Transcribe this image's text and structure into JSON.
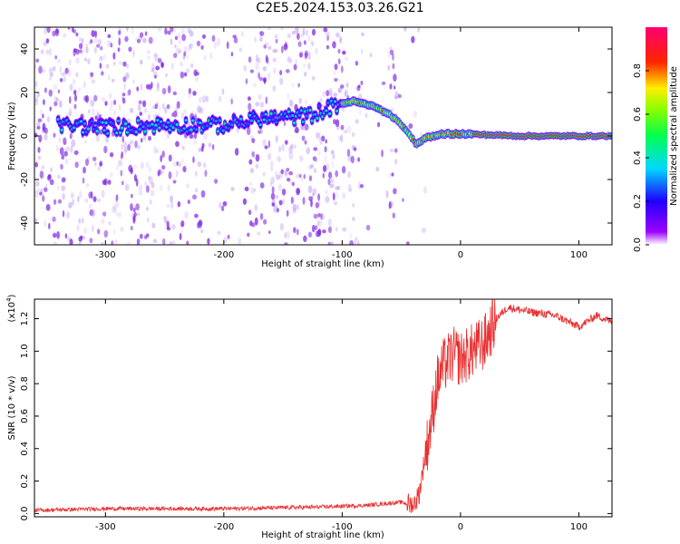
{
  "title": "C2E5.2024.153.03.26.G21",
  "colors": {
    "snr_line": "#e83030",
    "frame": "#000000"
  },
  "colorbar": {
    "label": "Normalized spectral amplitude",
    "ticks": [
      "0.0",
      "0.2",
      "0.4",
      "0.6",
      "0.8"
    ],
    "tick_values": [
      0.0,
      0.2,
      0.4,
      0.6,
      0.8
    ],
    "range": [
      0,
      1
    ],
    "colormap": "gist_rainbow_r (violet → blue → cyan → green → yellow → red → magenta)"
  },
  "chart_data": [
    {
      "type": "heatmap",
      "title": "C2E5.2024.153.03.26.G21",
      "xlabel": "Height of straight line (km)",
      "ylabel": "Frequency (Hz)",
      "xlim": [
        -360,
        128
      ],
      "ylim": [
        -50,
        50
      ],
      "xticks": [
        -300,
        -200,
        -100,
        0,
        100
      ],
      "yticks": [
        -40,
        -20,
        0,
        20,
        40
      ],
      "colorbar_label": "Normalized spectral amplitude",
      "description_of_signal": [
        {
          "x": -340,
          "y": 5
        },
        {
          "x": -300,
          "y": 4
        },
        {
          "x": -250,
          "y": 5
        },
        {
          "x": -200,
          "y": 5
        },
        {
          "x": -170,
          "y": 8
        },
        {
          "x": -130,
          "y": 9
        },
        {
          "x": -100,
          "y": 15
        },
        {
          "x": -90,
          "y": 16
        },
        {
          "x": -70,
          "y": 13
        },
        {
          "x": -55,
          "y": 8
        },
        {
          "x": -45,
          "y": 2
        },
        {
          "x": -37,
          "y": -4
        },
        {
          "x": -30,
          "y": -1
        },
        {
          "x": -15,
          "y": 1
        },
        {
          "x": 0,
          "y": 1
        },
        {
          "x": 50,
          "y": 0
        },
        {
          "x": 128,
          "y": 0
        }
      ]
    },
    {
      "type": "line",
      "title": "",
      "xlabel": "Height of straight line (km)",
      "ylabel": "SNR (10 * v/v)",
      "yunit_multiplier": "(x10",
      "yunit_exponent": "4",
      "xlim": [
        -360,
        128
      ],
      "ylim": [
        -0.02,
        1.32
      ],
      "xticks": [
        -300,
        -200,
        -100,
        0,
        100
      ],
      "yticks": [
        0.0,
        0.2,
        0.4,
        0.6,
        0.8,
        1.0,
        1.2
      ],
      "series": [
        {
          "color": "#e83030",
          "points": [
            [
              -360,
              0.02
            ],
            [
              -300,
              0.03
            ],
            [
              -200,
              0.03
            ],
            [
              -120,
              0.04
            ],
            [
              -80,
              0.05
            ],
            [
              -50,
              0.07
            ],
            [
              -40,
              0.05
            ],
            [
              -35,
              0.12
            ],
            [
              -30,
              0.35
            ],
            [
              -25,
              0.55
            ],
            [
              -20,
              0.8
            ],
            [
              -15,
              0.9
            ],
            [
              -10,
              0.95
            ],
            [
              -5,
              0.98
            ],
            [
              0,
              0.95
            ],
            [
              10,
              1.0
            ],
            [
              20,
              1.05
            ],
            [
              30,
              1.2
            ],
            [
              40,
              1.27
            ],
            [
              60,
              1.24
            ],
            [
              80,
              1.22
            ],
            [
              100,
              1.15
            ],
            [
              115,
              1.22
            ],
            [
              128,
              1.18
            ]
          ]
        }
      ]
    }
  ],
  "panel1": {
    "xlabel": "Height of straight line (km)",
    "ylabel": "Frequency (Hz)",
    "xticks": [
      "-300",
      "-200",
      "-100",
      "0",
      "100"
    ],
    "yticks": [
      "40",
      "20",
      "0",
      "-20",
      "-40"
    ]
  },
  "panel2": {
    "xlabel": "Height of straight line (km)",
    "ylabel": "SNR (10 * v/v)",
    "exp_base": "(x10",
    "exp_power": "4",
    "exp_close": ")",
    "xticks": [
      "-300",
      "-200",
      "-100",
      "0",
      "100"
    ],
    "yticks": [
      "0.0",
      "0.2",
      "0.4",
      "0.6",
      "0.8",
      "1.0",
      "1.2"
    ]
  }
}
